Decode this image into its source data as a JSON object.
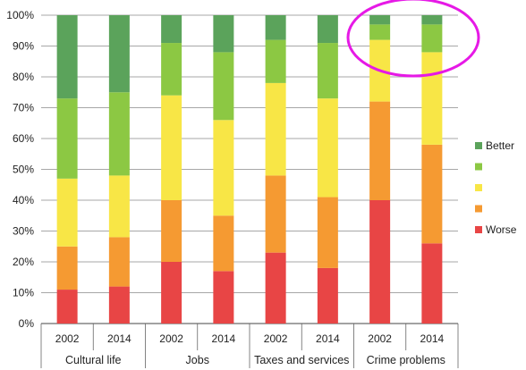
{
  "chart_data": {
    "type": "bar",
    "stacked": true,
    "y_ticks": [
      "0%",
      "10%",
      "20%",
      "30%",
      "40%",
      "50%",
      "60%",
      "70%",
      "80%",
      "90%",
      "100%"
    ],
    "ylim": [
      0,
      100
    ],
    "groups": [
      "Cultural life",
      "Jobs",
      "Taxes and services",
      "Crime problems"
    ],
    "categories": [
      "2002",
      "2014",
      "2002",
      "2014",
      "2002",
      "2014",
      "2002",
      "2014"
    ],
    "series": [
      {
        "name": "Worse",
        "color": "#e84545",
        "values": [
          11,
          12,
          20,
          17,
          23,
          18,
          40,
          26
        ]
      },
      {
        "name": "",
        "color": "#f59a32",
        "values": [
          14,
          16,
          20,
          18,
          25,
          23,
          32,
          32
        ]
      },
      {
        "name": "",
        "color": "#f8e646",
        "values": [
          22,
          20,
          34,
          31,
          30,
          32,
          20,
          30
        ]
      },
      {
        "name": "",
        "color": "#8cc843",
        "values": [
          26,
          27,
          17,
          22,
          14,
          18,
          5,
          9
        ]
      },
      {
        "name": "Better",
        "color": "#5ba35b",
        "values": [
          27,
          25,
          9,
          12,
          8,
          9,
          3,
          3
        ]
      }
    ],
    "legend_placement": "right",
    "legend_order": [
      "Better",
      "",
      "",
      "",
      "Worse"
    ],
    "grid": true,
    "annotation": {
      "type": "ellipse-highlight",
      "color": "#e619e6",
      "target": "Crime problems top segments"
    }
  }
}
